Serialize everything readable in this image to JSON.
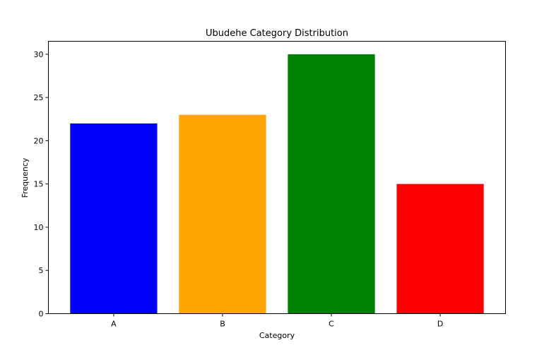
{
  "chart_data": {
    "type": "bar",
    "title": "Ubudehe Category Distribution",
    "xlabel": "Category",
    "ylabel": "Frequency",
    "categories": [
      "A",
      "B",
      "C",
      "D"
    ],
    "values": [
      22,
      23,
      30,
      15
    ],
    "colors": [
      "#0000ff",
      "#ffa500",
      "#008000",
      "#ff0000"
    ],
    "ylim": [
      0,
      31.5
    ],
    "yticks": [
      0,
      5,
      10,
      15,
      20,
      25,
      30
    ],
    "grid": false,
    "legend": "none"
  }
}
